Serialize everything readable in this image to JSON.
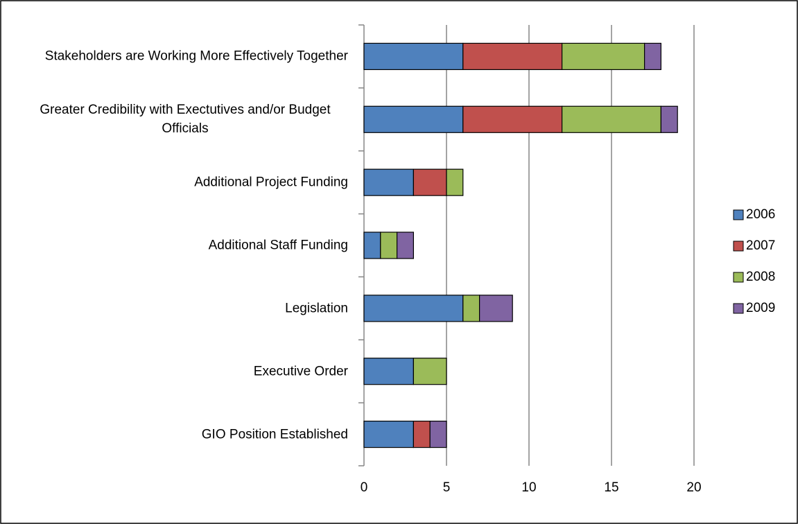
{
  "chart_data": {
    "type": "stacked_barh",
    "categories": [
      "Stakeholders are Working More Effectively Together",
      "Greater Credibility with Exectutives and/or Budget Officials",
      "Additional Project Funding",
      "Additional Staff Funding",
      "Legislation",
      "Executive Order",
      "GIO Position Established"
    ],
    "series": [
      {
        "name": "2006",
        "color": "#4f81bd",
        "values": [
          6,
          6,
          3,
          1,
          6,
          3,
          3
        ]
      },
      {
        "name": "2007",
        "color": "#c0504d",
        "values": [
          6,
          6,
          2,
          0,
          0,
          0,
          1
        ]
      },
      {
        "name": "2008",
        "color": "#9bbb59",
        "values": [
          5,
          6,
          1,
          1,
          1,
          2,
          0
        ]
      },
      {
        "name": "2009",
        "color": "#8064a2",
        "values": [
          1,
          1,
          0,
          1,
          2,
          0,
          1
        ]
      }
    ],
    "xlim": [
      0,
      20
    ],
    "xticks": [
      0,
      5,
      10,
      15,
      20
    ],
    "grid": true,
    "legend": "right"
  }
}
